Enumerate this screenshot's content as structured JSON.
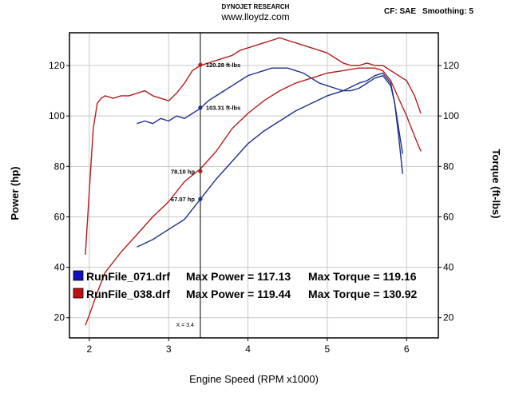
{
  "header": {
    "brand": "DYNOJET RESEARCH",
    "url": "www.lloydz.com",
    "correction": "CF: SAE",
    "smoothing": "Smoothing: 5"
  },
  "colors": {
    "blue": "#1f2f8c",
    "red": "#b01e1e",
    "grid": "#c8c8c8",
    "frame": "#000000"
  },
  "chart_data": {
    "type": "line",
    "xlabel": "Engine Speed (RPM x1000)",
    "ylabel_left": "Power (hp)",
    "ylabel_right": "Torque (ft-lbs)",
    "xlim": [
      1.75,
      6.4
    ],
    "ylim_left": [
      12,
      133
    ],
    "ylim_right": [
      12,
      133
    ],
    "xticks": [
      2,
      3,
      4,
      5,
      6
    ],
    "yticks_left": [
      20,
      40,
      60,
      80,
      100,
      120
    ],
    "yticks_right": [
      20,
      40,
      60,
      80,
      100,
      120
    ],
    "grid": true,
    "series": [
      {
        "name": "RunFile_071.drf",
        "color": "#1f2f8c",
        "kind": "torque",
        "x": [
          2.6,
          2.7,
          2.8,
          2.9,
          3.0,
          3.1,
          3.2,
          3.3,
          3.4,
          3.5,
          3.6,
          3.7,
          3.8,
          3.9,
          4.0,
          4.1,
          4.2,
          4.3,
          4.4,
          4.5,
          4.6,
          4.7,
          4.8,
          4.9,
          5.0,
          5.1,
          5.2,
          5.3,
          5.4,
          5.5,
          5.6,
          5.7,
          5.8,
          5.85,
          5.9,
          5.95
        ],
        "y": [
          97,
          98,
          97,
          99,
          98,
          100,
          99,
          101,
          103,
          106,
          108,
          110,
          112,
          114,
          116,
          117,
          118,
          119,
          119,
          119,
          118,
          117,
          115,
          113,
          112,
          111,
          110,
          110,
          111,
          113,
          115,
          116,
          112,
          105,
          95,
          85
        ]
      },
      {
        "name": "RunFile_071.drf",
        "color": "#1f2f8c",
        "kind": "power",
        "x": [
          2.6,
          2.8,
          3.0,
          3.2,
          3.4,
          3.6,
          3.8,
          4.0,
          4.2,
          4.4,
          4.6,
          4.8,
          5.0,
          5.2,
          5.4,
          5.5,
          5.6,
          5.7,
          5.8,
          5.85,
          5.9,
          5.95
        ],
        "y": [
          48,
          51,
          55,
          59,
          67,
          75,
          82,
          89,
          94,
          98,
          102,
          105,
          108,
          110,
          113,
          114,
          116,
          117,
          113,
          105,
          92,
          77
        ]
      },
      {
        "name": "RunFile_038.drf",
        "color": "#b01e1e",
        "kind": "torque",
        "x": [
          1.95,
          2.0,
          2.05,
          2.1,
          2.15,
          2.2,
          2.3,
          2.4,
          2.5,
          2.6,
          2.7,
          2.8,
          2.9,
          3.0,
          3.1,
          3.2,
          3.3,
          3.4,
          3.5,
          3.6,
          3.7,
          3.8,
          3.9,
          4.0,
          4.1,
          4.2,
          4.3,
          4.4,
          4.5,
          4.6,
          4.7,
          4.8,
          4.9,
          5.0,
          5.1,
          5.2,
          5.3,
          5.4,
          5.5,
          5.6,
          5.7,
          5.8,
          5.9,
          6.0,
          6.1,
          6.18
        ],
        "y": [
          45,
          70,
          95,
          105,
          107,
          108,
          107,
          108,
          108,
          109,
          110,
          108,
          107,
          106,
          109,
          113,
          118,
          120,
          121,
          122,
          123,
          124,
          126,
          127,
          128,
          129,
          130,
          131,
          130,
          129,
          128,
          127,
          126,
          125,
          123,
          121,
          120,
          120,
          121,
          120,
          120,
          118,
          116,
          114,
          108,
          101
        ]
      },
      {
        "name": "RunFile_038.drf",
        "color": "#b01e1e",
        "kind": "power",
        "x": [
          1.95,
          2.0,
          2.1,
          2.2,
          2.4,
          2.6,
          2.8,
          3.0,
          3.2,
          3.4,
          3.6,
          3.8,
          4.0,
          4.2,
          4.4,
          4.6,
          4.8,
          5.0,
          5.2,
          5.4,
          5.5,
          5.6,
          5.7,
          5.8,
          5.9,
          6.0,
          6.1,
          6.18
        ],
        "y": [
          17,
          21,
          30,
          38,
          46,
          53,
          60,
          66,
          74,
          79,
          86,
          95,
          101,
          106,
          110,
          113,
          115,
          117,
          118,
          119,
          119,
          119,
          118,
          114,
          107,
          100,
          92,
          86
        ]
      }
    ],
    "cursor": {
      "label": "X = 3.4",
      "x": 3.4
    },
    "markers": [
      {
        "label": "120.28 ft-lbs",
        "x": 3.4,
        "y": 120.28,
        "color": "#b01e1e",
        "side": "right"
      },
      {
        "label": "103.31 ft-lbs",
        "x": 3.4,
        "y": 103.31,
        "color": "#1f2f8c",
        "side": "right"
      },
      {
        "label": "78.10 hp",
        "x": 3.4,
        "y": 78.1,
        "color": "#b01e1e",
        "side": "left"
      },
      {
        "label": "67.07 hp",
        "x": 3.4,
        "y": 67.07,
        "color": "#1f2f8c",
        "side": "left"
      }
    ],
    "legend": [
      {
        "file": "RunFile_071.drf",
        "power": "Max Power = 117.13",
        "torque": "Max Torque = 119.16",
        "color": "#1010c0"
      },
      {
        "file": "RunFile_038.drf",
        "power": "Max Power = 119.44",
        "torque": "Max Torque = 130.92",
        "color": "#c01010"
      }
    ]
  }
}
